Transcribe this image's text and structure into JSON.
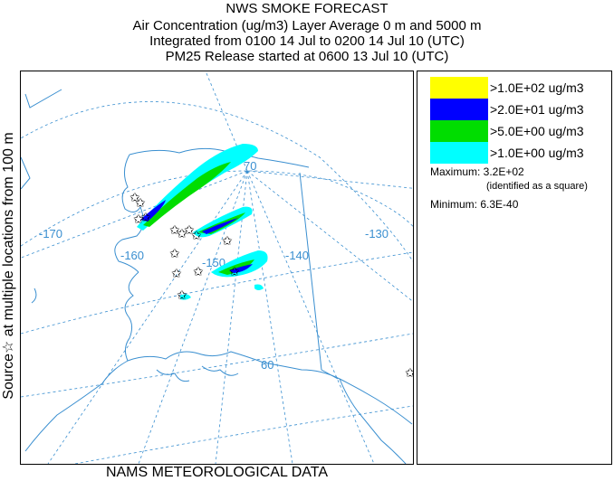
{
  "header": {
    "title": "NWS SMOKE FORECAST",
    "line2": "Air Concentration (ug/m3) Layer Average    0 m and  5000 m",
    "line3": "Integrated from 0100 14 Jul to 0200 14 Jul 10 (UTC)",
    "line4": "PM25 Release started at 0600 13 Jul 10 (UTC)"
  },
  "side_label": "Source☆ at multiple locations  from   100 m",
  "footer": "NAMS METEOROLOGICAL DATA",
  "map": {
    "longitude_labels": [
      "-170",
      "-160",
      "-150",
      "-140",
      "-130"
    ],
    "latitude_labels": [
      "70",
      "60"
    ]
  },
  "legend": {
    "items": [
      {
        "label": ">1.0E+02 ug/m3",
        "color": "#ffff00"
      },
      {
        "label": ">2.0E+01 ug/m3",
        "color": "#0000ff"
      },
      {
        "label": ">5.0E+00 ug/m3",
        "color": "#00dd00"
      },
      {
        "label": ">1.0E+00 ug/m3",
        "color": "#00ffff"
      }
    ],
    "maximum_label": "Maximum: 3.2E+02",
    "maximum_note": "(identified as a square)",
    "minimum_label": "Minimum: 6.3E-40"
  },
  "colors": {
    "graticule": "#3a8fd0",
    "coastline": "#3a8fd0",
    "border": "#3a8fd0",
    "star": "#000000"
  }
}
